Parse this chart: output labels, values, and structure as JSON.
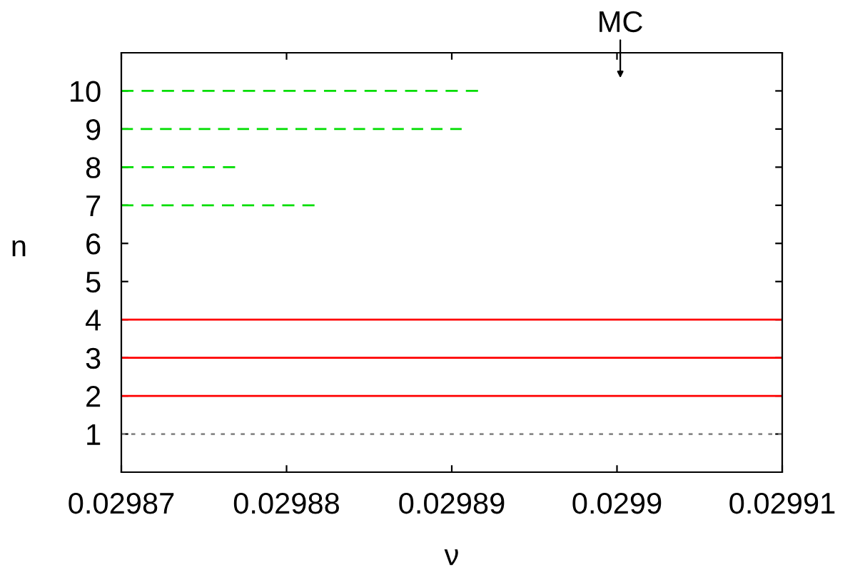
{
  "chart_data": {
    "type": "line",
    "xlabel": "ν",
    "ylabel": "n",
    "xlim": [
      0.02987,
      0.02991
    ],
    "xticks": [
      0.02987,
      0.02988,
      0.02989,
      0.0299,
      0.02991
    ],
    "ylim": [
      0,
      11
    ],
    "yticks": [
      1,
      2,
      3,
      4,
      5,
      6,
      7,
      8,
      9,
      10
    ],
    "grid": false,
    "legend": false,
    "marker": "none",
    "series": [
      {
        "color": "#00dd00",
        "line_style": "dashed",
        "x": [
          0.02987,
          0.0298916
        ],
        "values": [
          10,
          10
        ]
      },
      {
        "color": "#00dd00",
        "line_style": "dashed",
        "x": [
          0.02987,
          0.0298906
        ],
        "values": [
          9,
          9
        ]
      },
      {
        "color": "#00dd00",
        "line_style": "dashed",
        "x": [
          0.02987,
          0.0298769
        ],
        "values": [
          8,
          8
        ]
      },
      {
        "color": "#00dd00",
        "line_style": "dashed",
        "x": [
          0.02987,
          0.0298817
        ],
        "values": [
          7,
          7
        ]
      },
      {
        "color": "#ff0000",
        "line_style": "solid",
        "x": [
          0.02987,
          0.02991
        ],
        "values": [
          4,
          4
        ]
      },
      {
        "color": "#ff0000",
        "line_style": "solid",
        "x": [
          0.02987,
          0.02991
        ],
        "values": [
          3,
          3
        ]
      },
      {
        "color": "#ff0000",
        "line_style": "solid",
        "x": [
          0.02987,
          0.02991
        ],
        "values": [
          2,
          2
        ]
      },
      {
        "color": "#888888",
        "line_style": "dotted",
        "x": [
          0.02987,
          0.02991
        ],
        "values": [
          1,
          1
        ]
      }
    ],
    "annotations": [
      "MC"
    ]
  }
}
